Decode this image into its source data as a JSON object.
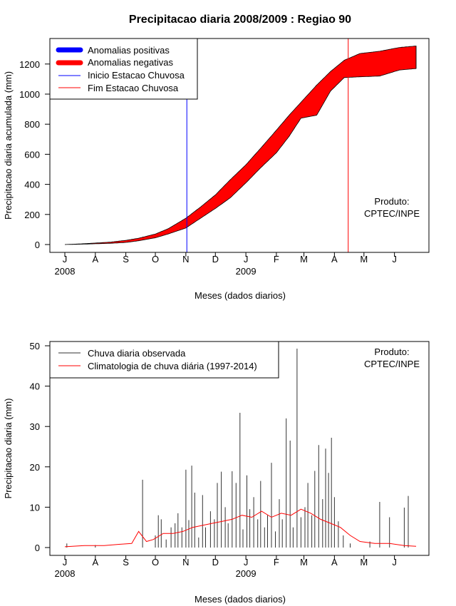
{
  "chart_data": [
    {
      "type": "area",
      "title": "Precipitacao diaria 2008/2009 : Regiao 90",
      "xlabel": "Meses (dados diarios)",
      "ylabel": "Precipitacao diaria acumulada (mm)",
      "ylim": [
        0,
        1300
      ],
      "yticks": [
        0,
        200,
        400,
        600,
        800,
        1000,
        1200
      ],
      "month_labels": [
        "J",
        "A",
        "S",
        "O",
        "N",
        "D",
        "J",
        "F",
        "M",
        "A",
        "M",
        "J"
      ],
      "year_labels": [
        "2008",
        "2009"
      ],
      "legend": {
        "position": "top-left",
        "entries": [
          "Anomalias positivas",
          "Anomalias negativas",
          "Inicio Estacao Chuvosa",
          "Fim Estacao Chuvosa"
        ]
      },
      "annotation": [
        "Produto:",
        "CPTEC/INPE"
      ],
      "inicio_estacao_chuvosa_day": 124,
      "fim_estacao_chuvosa_day": 288,
      "series": [
        {
          "name": "Climatologia acumulada",
          "day": [
            0,
            15,
            31,
            46,
            62,
            75,
            92,
            105,
            123,
            138,
            153,
            168,
            184,
            199,
            215,
            228,
            242,
            256,
            270,
            284,
            300,
            320,
            340,
            357
          ],
          "values": [
            0,
            4,
            10,
            16,
            28,
            42,
            70,
            105,
            175,
            250,
            330,
            430,
            530,
            640,
            760,
            860,
            960,
            1060,
            1150,
            1225,
            1270,
            1285,
            1310,
            1320
          ]
        },
        {
          "name": "Chuva observada acumulada",
          "day": [
            0,
            15,
            31,
            46,
            62,
            75,
            92,
            105,
            123,
            138,
            153,
            168,
            184,
            199,
            215,
            228,
            240,
            256,
            270,
            284,
            300,
            320,
            340,
            357
          ],
          "values": [
            0,
            2,
            5,
            8,
            14,
            25,
            45,
            70,
            110,
            175,
            240,
            310,
            410,
            510,
            610,
            720,
            840,
            860,
            1020,
            1110,
            1115,
            1120,
            1160,
            1170
          ]
        }
      ]
    },
    {
      "type": "line",
      "xlabel": "Meses (dados diarios)",
      "ylabel": "Precipitacao diaria (mm)",
      "ylim": [
        0,
        50
      ],
      "yticks": [
        0,
        10,
        20,
        30,
        40,
        50
      ],
      "month_labels": [
        "J",
        "A",
        "S",
        "O",
        "N",
        "D",
        "J",
        "F",
        "M",
        "A",
        "M",
        "J"
      ],
      "year_labels": [
        "2008",
        "2009"
      ],
      "legend": {
        "position": "top-left",
        "entries": [
          "Chuva diaria observada",
          "Climatologia de chuva diária (1997-2014)"
        ]
      },
      "annotation": [
        "Produto:",
        "CPTEC/INPE"
      ],
      "series": [
        {
          "name": "Chuva diaria observada",
          "day": [
            2,
            31,
            79,
            92,
            95,
            98,
            103,
            108,
            112,
            115,
            119,
            123,
            126,
            129,
            132,
            136,
            140,
            143,
            148,
            152,
            155,
            159,
            163,
            166,
            170,
            174,
            178,
            181,
            185,
            188,
            192,
            196,
            199,
            203,
            206,
            210,
            214,
            218,
            221,
            225,
            229,
            232,
            236,
            240,
            244,
            247,
            251,
            254,
            258,
            262,
            265,
            268,
            271,
            274,
            278,
            283,
            290,
            310,
            320,
            330,
            345,
            349
          ],
          "values": [
            1,
            0.6,
            16.8,
            3,
            8,
            7,
            2,
            5,
            6,
            8.5,
            5,
            19.3,
            6.8,
            20.3,
            13.6,
            2.5,
            13,
            5,
            9,
            7,
            16,
            18.8,
            10,
            6,
            18.9,
            16,
            33.4,
            4.5,
            17.9,
            9.5,
            12.5,
            7,
            16.5,
            5,
            8,
            21,
            4,
            12,
            7,
            32,
            26.5,
            5,
            49.3,
            7.5,
            10,
            16,
            8,
            19,
            25.4,
            12,
            24.5,
            18.5,
            27.2,
            12.5,
            6.5,
            3,
            1,
            1.5,
            11.3,
            7.5,
            9.9,
            12.8
          ]
        },
        {
          "name": "Climatologia de chuva diária (1997-2014)",
          "day": [
            0,
            20,
            40,
            55,
            68,
            75,
            83,
            90,
            100,
            110,
            120,
            130,
            140,
            150,
            160,
            170,
            180,
            190,
            200,
            210,
            220,
            230,
            240,
            250,
            260,
            270,
            280,
            290,
            300,
            315,
            330,
            345,
            357
          ],
          "values": [
            0.2,
            0.5,
            0.5,
            0.8,
            1,
            4,
            1.5,
            2,
            3.5,
            3.5,
            4,
            5,
            5.5,
            6,
            6.5,
            7,
            8,
            7.5,
            9,
            7.5,
            8.5,
            8,
            9.5,
            8.5,
            7,
            6,
            5,
            3,
            1.5,
            1,
            1,
            0.5,
            0.3
          ]
        }
      ]
    }
  ]
}
